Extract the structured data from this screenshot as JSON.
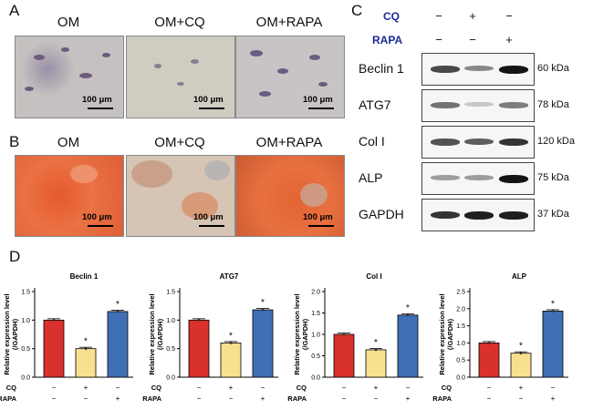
{
  "panels": {
    "a": "A",
    "b": "B",
    "c": "C",
    "d": "D"
  },
  "micrographs": {
    "labels": [
      "OM",
      "OM+CQ",
      "OM+RAPA"
    ],
    "scale": "100 μm",
    "row_a_color": "#c9c9bf",
    "row_b_color": "#e0663a"
  },
  "western": {
    "treatments": [
      {
        "name": "CQ",
        "signs": [
          "−",
          "+",
          "−"
        ]
      },
      {
        "name": "RAPA",
        "signs": [
          "−",
          "−",
          "+"
        ]
      }
    ],
    "rows": [
      {
        "label": "Beclin 1",
        "kda": "60 kDa",
        "intensity": [
          0.75,
          0.45,
          1.0
        ]
      },
      {
        "label": "ATG7",
        "kda": "78 kDa",
        "intensity": [
          0.55,
          0.15,
          0.5
        ]
      },
      {
        "label": "Col I",
        "kda": "120 kDa",
        "intensity": [
          0.7,
          0.65,
          0.85
        ]
      },
      {
        "label": "ALP",
        "kda": "75 kDa",
        "intensity": [
          0.35,
          0.35,
          1.0
        ]
      },
      {
        "label": "GAPDH",
        "kda": "37 kDa",
        "intensity": [
          0.85,
          0.95,
          0.95
        ]
      }
    ],
    "treatment_color": "#1a2a9a"
  },
  "chart_data": [
    {
      "type": "bar",
      "title": "Beclin 1",
      "ylabel": "Relative expression level\n(/GAPDH)",
      "categories": [
        "OM",
        "OM+CQ",
        "OM+RAPA"
      ],
      "values": [
        1.0,
        0.5,
        1.15
      ],
      "significant": [
        false,
        true,
        true
      ],
      "ylim": [
        0,
        1.5
      ],
      "yticks": [
        "0.0",
        "0.5",
        "1.0",
        "1.5"
      ]
    },
    {
      "type": "bar",
      "title": "ATG7",
      "ylabel": "Relative expression level\n(/GAPDH)",
      "categories": [
        "OM",
        "OM+CQ",
        "OM+RAPA"
      ],
      "values": [
        1.0,
        0.6,
        1.18
      ],
      "significant": [
        false,
        true,
        true
      ],
      "ylim": [
        0,
        1.5
      ],
      "yticks": [
        "0.0",
        "0.5",
        "1.0",
        "1.5"
      ]
    },
    {
      "type": "bar",
      "title": "Col I",
      "ylabel": "Relative expression level\n(/GAPDH)",
      "categories": [
        "OM",
        "OM+CQ",
        "OM+RAPA"
      ],
      "values": [
        1.0,
        0.64,
        1.45
      ],
      "significant": [
        false,
        true,
        true
      ],
      "ylim": [
        0,
        2.0
      ],
      "yticks": [
        "0.0",
        "0.5",
        "1.0",
        "1.5",
        "2.0"
      ]
    },
    {
      "type": "bar",
      "title": "ALP",
      "ylabel": "Relative expression level\n(/GAPDH)",
      "categories": [
        "OM",
        "OM+CQ",
        "OM+RAPA"
      ],
      "values": [
        1.0,
        0.7,
        1.93
      ],
      "significant": [
        false,
        true,
        true
      ],
      "ylim": [
        0,
        2.5
      ],
      "yticks": [
        "0.0",
        "0.5",
        "1.0",
        "1.5",
        "2.0",
        "2.5"
      ]
    }
  ],
  "chart_style": {
    "bar_colors": [
      "#d9312b",
      "#f8e08e",
      "#3f6fb5"
    ],
    "treatments": [
      {
        "name": "CQ",
        "signs": [
          "−",
          "+",
          "−"
        ]
      },
      {
        "name": "RAPA",
        "signs": [
          "−",
          "−",
          "+"
        ]
      }
    ],
    "star": "*"
  }
}
